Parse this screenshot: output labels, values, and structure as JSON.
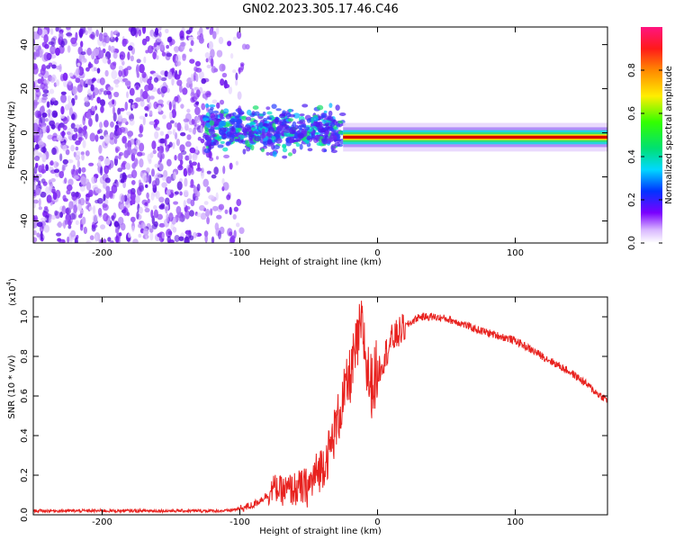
{
  "figure_title": "GN02.2023.305.17.46.C46",
  "colors": {
    "snr_line": "#e8221f",
    "track": "#cc0000",
    "noise": "#7b2cf0",
    "axis": "#000000"
  },
  "chart_data": [
    {
      "type": "heatmap",
      "title": "",
      "xlabel": "Height of straight line (km)",
      "ylabel": "Frequency (Hz)",
      "xlim": [
        -250,
        167
      ],
      "ylim": [
        -50,
        48
      ],
      "x_ticks": [
        -200,
        -100,
        0,
        100
      ],
      "x_tick_labels": [
        "-200",
        "-100",
        "0",
        "100"
      ],
      "y_ticks": [
        -40,
        -20,
        0,
        20,
        40
      ],
      "y_tick_labels": [
        "-40",
        "-20",
        "0",
        "20",
        "40"
      ],
      "colorbar": {
        "label": "Normalized spectral amplitude",
        "range": [
          0.0,
          1.0
        ],
        "ticks": [
          0.0,
          0.2,
          0.4,
          0.6,
          0.8
        ],
        "tick_labels": [
          "0.0",
          "0.2",
          "0.4",
          "0.6",
          "0.8"
        ]
      },
      "regions": [
        {
          "name": "noise",
          "x_range": [
            -250,
            -100
          ],
          "freq_range": [
            -50,
            48
          ],
          "amplitude": 0.15
        },
        {
          "name": "scatter",
          "x_range": [
            -125,
            -25
          ],
          "freq_range": [
            -12,
            14
          ],
          "amplitude": 0.35
        },
        {
          "name": "track",
          "x_range": [
            -25,
            167
          ],
          "center_freq": -2,
          "amplitude": 1.0
        }
      ]
    },
    {
      "type": "line",
      "title": "",
      "xlabel": "Height of straight line (km)",
      "ylabel": "SNR (10 * v/v)",
      "y_scale_label": "(x10",
      "y_scale_exp": "4",
      "y_scale_close": ")",
      "xlim": [
        -250,
        167
      ],
      "ylim": [
        0.0,
        1.1
      ],
      "x_ticks": [
        -200,
        -100,
        0,
        100
      ],
      "x_tick_labels": [
        "-200",
        "-100",
        "0",
        "100"
      ],
      "y_ticks": [
        0.0,
        0.2,
        0.4,
        0.6,
        0.8,
        1.0
      ],
      "y_tick_labels": [
        "0.0",
        "0.2",
        "0.4",
        "0.6",
        "0.8",
        "1.0"
      ],
      "series": [
        {
          "x": [
            -250,
            -200,
            -150,
            -110,
            -100,
            -90,
            -80,
            -75,
            -70,
            -60,
            -50,
            -45,
            -40,
            -35,
            -30,
            -25,
            -20,
            -15,
            -12,
            -10,
            -8,
            -5,
            0,
            5,
            10,
            20,
            30,
            40,
            50,
            60,
            70,
            80,
            90,
            100,
            110,
            120,
            130,
            140,
            150,
            160,
            167
          ],
          "y": [
            0.02,
            0.02,
            0.02,
            0.02,
            0.03,
            0.05,
            0.1,
            0.14,
            0.12,
            0.13,
            0.14,
            0.2,
            0.25,
            0.32,
            0.45,
            0.58,
            0.7,
            0.85,
            0.95,
            0.9,
            0.75,
            0.65,
            0.72,
            0.8,
            0.88,
            0.95,
            1.0,
            1.0,
            0.99,
            0.97,
            0.94,
            0.92,
            0.9,
            0.88,
            0.84,
            0.8,
            0.76,
            0.72,
            0.67,
            0.61,
            0.58
          ]
        }
      ]
    }
  ]
}
